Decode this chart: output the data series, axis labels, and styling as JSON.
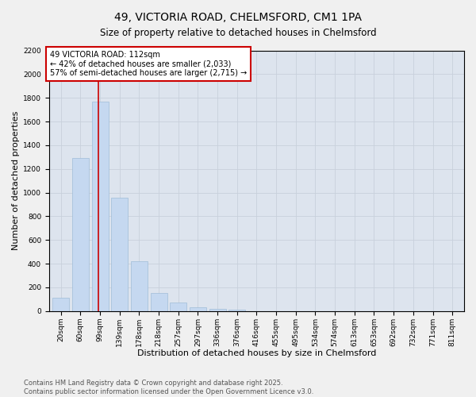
{
  "title": "49, VICTORIA ROAD, CHELMSFORD, CM1 1PA",
  "subtitle": "Size of property relative to detached houses in Chelmsford",
  "xlabel": "Distribution of detached houses by size in Chelmsford",
  "ylabel": "Number of detached properties",
  "categories": [
    "20sqm",
    "60sqm",
    "99sqm",
    "139sqm",
    "178sqm",
    "218sqm",
    "257sqm",
    "297sqm",
    "336sqm",
    "376sqm",
    "416sqm",
    "455sqm",
    "495sqm",
    "534sqm",
    "574sqm",
    "613sqm",
    "653sqm",
    "692sqm",
    "732sqm",
    "771sqm",
    "811sqm"
  ],
  "values": [
    115,
    1295,
    1770,
    955,
    420,
    155,
    70,
    35,
    20,
    10,
    0,
    0,
    0,
    0,
    0,
    0,
    0,
    0,
    0,
    0,
    0
  ],
  "bar_color": "#c5d8f0",
  "bar_edge_color": "#a0bcd8",
  "property_line_x": 2,
  "annotation_line1": "49 VICTORIA ROAD: 112sqm",
  "annotation_line2": "← 42% of detached houses are smaller (2,033)",
  "annotation_line3": "57% of semi-detached houses are larger (2,715) →",
  "annotation_box_color": "#ffffff",
  "annotation_box_edge_color": "#cc0000",
  "vline_color": "#cc0000",
  "ylim": [
    0,
    2200
  ],
  "yticks": [
    0,
    200,
    400,
    600,
    800,
    1000,
    1200,
    1400,
    1600,
    1800,
    2000,
    2200
  ],
  "grid_color": "#c8d0dc",
  "background_color": "#dde4ee",
  "fig_background": "#f0f0f0",
  "footnote": "Contains HM Land Registry data © Crown copyright and database right 2025.\nContains public sector information licensed under the Open Government Licence v3.0.",
  "title_fontsize": 10,
  "subtitle_fontsize": 8.5,
  "axis_label_fontsize": 8,
  "tick_fontsize": 6.5,
  "annotation_fontsize": 7,
  "footnote_fontsize": 6
}
